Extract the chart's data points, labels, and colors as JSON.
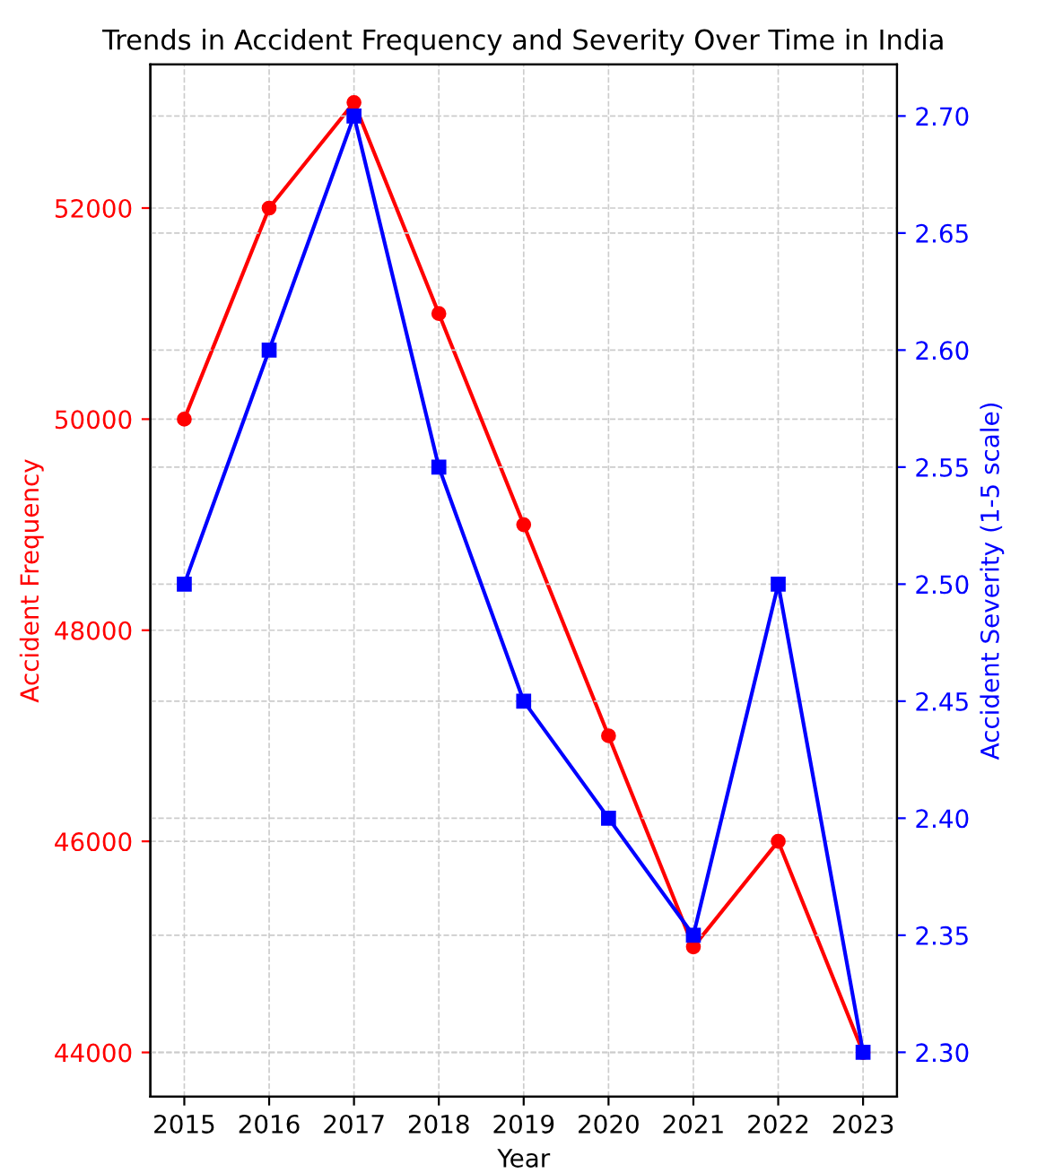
{
  "chart_data": {
    "type": "line",
    "title": "Trends in Accident Frequency and Severity Over Time in India",
    "xlabel": "Year",
    "ylabel": "Accident Frequency",
    "y2label": "Accident Severity (1-5 scale)",
    "x": [
      2015,
      2016,
      2017,
      2018,
      2019,
      2020,
      2021,
      2022,
      2023
    ],
    "xlim": [
      2014.6,
      2023.4
    ],
    "xticks": [
      2015,
      2016,
      2017,
      2018,
      2019,
      2020,
      2021,
      2022,
      2023
    ],
    "ylim": [
      43580,
      53360
    ],
    "yticks": [
      44000,
      46000,
      48000,
      50000,
      52000
    ],
    "y2lim": [
      2.281,
      2.722
    ],
    "y2ticks": [
      {
        "value": 2.3,
        "label": "2.30"
      },
      {
        "value": 2.35,
        "label": "2.35"
      },
      {
        "value": 2.4,
        "label": "2.40"
      },
      {
        "value": 2.45,
        "label": "2.45"
      },
      {
        "value": 2.5,
        "label": "2.50"
      },
      {
        "value": 2.55,
        "label": "2.55"
      },
      {
        "value": 2.6,
        "label": "2.60"
      },
      {
        "value": 2.65,
        "label": "2.65"
      },
      {
        "value": 2.7,
        "label": "2.70"
      }
    ],
    "grid": true,
    "line_style": "solid",
    "series": [
      {
        "color": "#ff0000",
        "marker": "circle",
        "values": [
          50000,
          52000,
          53000,
          51000,
          49000,
          47000,
          45000,
          46000,
          44000
        ]
      },
      {
        "color": "#0000ff",
        "marker": "square",
        "axis": "y2",
        "values": [
          2.5,
          2.6,
          2.7,
          2.55,
          2.45,
          2.4,
          2.35,
          2.5,
          2.3
        ]
      }
    ]
  }
}
